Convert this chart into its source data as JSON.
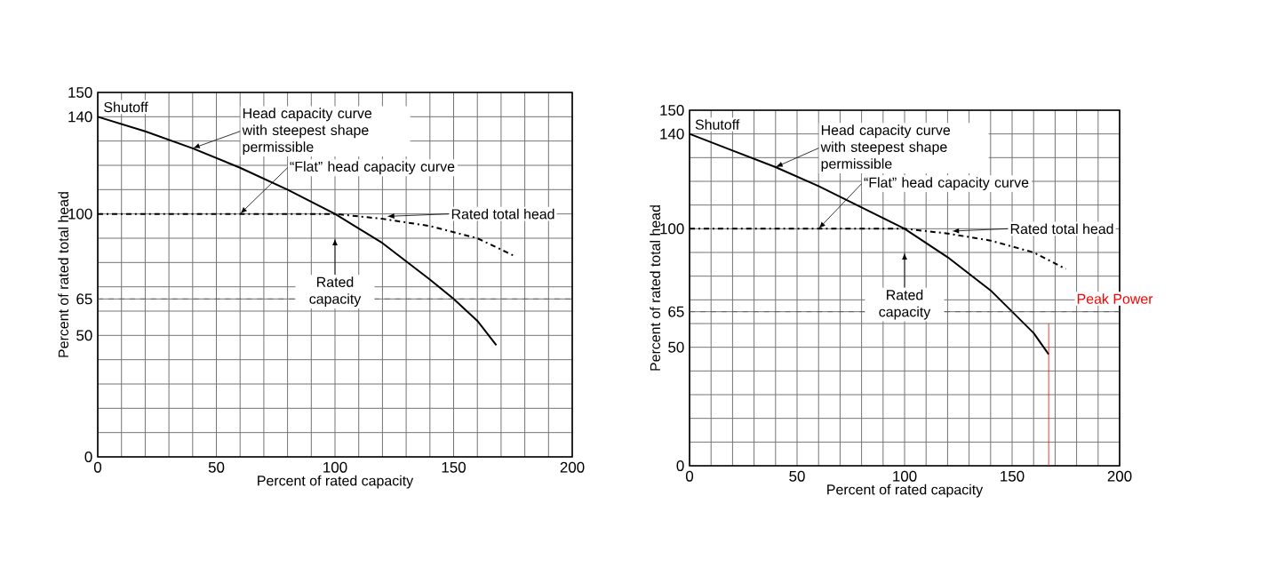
{
  "chart_data": [
    {
      "type": "line",
      "xlabel": "Percent of rated capacity",
      "ylabel": "Percent of rated total head",
      "series": [
        {
          "name": "Head capacity curve with steepest shape permissible",
          "color": "#000000",
          "line_style": "solid",
          "x": [
            0,
            20,
            40,
            60,
            80,
            100,
            120,
            140,
            150,
            160,
            168
          ],
          "values": [
            140,
            134,
            127,
            119,
            110,
            100,
            88,
            73,
            65,
            56,
            46
          ]
        },
        {
          "name": "“Flat” head capacity curve",
          "color": "#000000",
          "line_style": "dashed",
          "x": [
            0,
            20,
            40,
            60,
            80,
            100,
            120,
            140,
            160,
            175
          ],
          "values": [
            100,
            100,
            100,
            100,
            100,
            100,
            98,
            95,
            90,
            83
          ]
        }
      ],
      "annotations": [
        {
          "text": "Shutoff",
          "x": 0,
          "y": 140
        },
        "Rated total head",
        "Rated capacity"
      ],
      "ref_lines": [
        {
          "axis": "y",
          "value": 65,
          "color": "#555555",
          "line_style": "dashed"
        }
      ],
      "xlim": [
        0,
        200
      ],
      "ylim": [
        0,
        150
      ],
      "xticks": [
        0,
        {
          "value": 10,
          "label": null
        },
        {
          "value": 20,
          "label": null
        },
        {
          "value": 30,
          "label": null
        },
        {
          "value": 40,
          "label": null
        },
        50,
        {
          "value": 60,
          "label": null
        },
        {
          "value": 70,
          "label": null
        },
        {
          "value": 80,
          "label": null
        },
        {
          "value": 90,
          "label": null
        },
        100,
        {
          "value": 110,
          "label": null
        },
        {
          "value": 120,
          "label": null
        },
        {
          "value": 130,
          "label": null
        },
        {
          "value": 140,
          "label": null
        },
        150,
        {
          "value": 160,
          "label": null
        },
        {
          "value": 170,
          "label": null
        },
        {
          "value": 180,
          "label": null
        },
        {
          "value": 190,
          "label": null
        },
        200
      ],
      "yticks": [
        0,
        {
          "value": 10,
          "label": null
        },
        {
          "value": 20,
          "label": null
        },
        {
          "value": 30,
          "label": null
        },
        {
          "value": 40,
          "label": null
        },
        50,
        {
          "value": 60,
          "label": null
        },
        65,
        {
          "value": 70,
          "label": null
        },
        {
          "value": 80,
          "label": null
        },
        {
          "value": 90,
          "label": null
        },
        100,
        {
          "value": 110,
          "label": null
        },
        {
          "value": 120,
          "label": null
        },
        {
          "value": 130,
          "label": null
        },
        140,
        150
      ],
      "grid": true
    },
    {
      "type": "line",
      "xlabel": "Percent of rated capacity",
      "ylabel": "Percent of rated total head",
      "series": [
        {
          "name": "Head capacity curve with steepest shape permissible",
          "color": "#000000",
          "line_style": "solid",
          "x": [
            0,
            20,
            40,
            60,
            80,
            100,
            120,
            140,
            150,
            160,
            167
          ],
          "values": [
            140,
            133,
            126,
            118,
            109,
            100,
            88,
            74,
            65,
            56,
            47
          ]
        },
        {
          "name": "“Flat” head capacity curve",
          "color": "#000000",
          "line_style": "dashed",
          "x": [
            0,
            20,
            40,
            60,
            80,
            100,
            120,
            140,
            160,
            175
          ],
          "values": [
            100,
            100,
            100,
            100,
            100,
            100,
            98,
            95,
            90,
            83
          ]
        }
      ],
      "annotations": [
        {
          "text": "Shutoff",
          "x": 0,
          "y": 140
        },
        "Rated total head",
        "Rated capacity"
      ],
      "ref_lines": [
        {
          "axis": "y",
          "value": 65,
          "color": "#555555",
          "line_style": "dashed"
        },
        {
          "axis": "x",
          "value": 167,
          "color": "#ff0000",
          "line_style": "solid",
          "label": "Peak Power"
        }
      ],
      "xlim": [
        0,
        200
      ],
      "ylim": [
        0,
        150
      ],
      "xticks": [
        0,
        {
          "value": 10,
          "label": null
        },
        {
          "value": 20,
          "label": null
        },
        {
          "value": 30,
          "label": null
        },
        {
          "value": 40,
          "label": null
        },
        50,
        {
          "value": 60,
          "label": null
        },
        {
          "value": 70,
          "label": null
        },
        {
          "value": 80,
          "label": null
        },
        {
          "value": 90,
          "label": null
        },
        100,
        {
          "value": 110,
          "label": null
        },
        {
          "value": 120,
          "label": null
        },
        {
          "value": 130,
          "label": null
        },
        {
          "value": 140,
          "label": null
        },
        150,
        {
          "value": 160,
          "label": null
        },
        {
          "value": 170,
          "label": null
        },
        {
          "value": 180,
          "label": null
        },
        {
          "value": 190,
          "label": null
        },
        200
      ],
      "yticks": [
        0,
        {
          "value": 10,
          "label": null
        },
        {
          "value": 20,
          "label": null
        },
        {
          "value": 30,
          "label": null
        },
        {
          "value": 40,
          "label": null
        },
        50,
        {
          "value": 60,
          "label": null
        },
        65,
        {
          "value": 70,
          "label": null
        },
        {
          "value": 80,
          "label": null
        },
        {
          "value": 90,
          "label": null
        },
        100,
        {
          "value": 110,
          "label": null
        },
        {
          "value": 120,
          "label": null
        },
        {
          "value": 130,
          "label": null
        },
        140,
        150
      ],
      "grid": true
    }
  ]
}
